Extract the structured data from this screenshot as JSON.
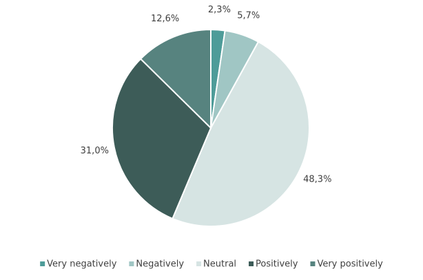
{
  "chart_data": {
    "type": "pie",
    "categories": [
      "Very negatively",
      "Negatively",
      "Neutral",
      "Positively",
      "Very positively"
    ],
    "values": [
      2.3,
      5.7,
      48.3,
      31.0,
      12.6
    ],
    "value_labels": [
      "2,3%",
      "5,7%",
      "48,3%",
      "31,0%",
      "12,6%"
    ],
    "colors": [
      "#4e9c99",
      "#a0c6c4",
      "#d6e4e3",
      "#3d5c58",
      "#57837f"
    ],
    "legend": "bottom"
  }
}
